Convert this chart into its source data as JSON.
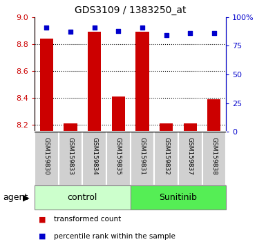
{
  "title": "GDS3109 / 1383250_at",
  "samples": [
    "GSM159830",
    "GSM159833",
    "GSM159834",
    "GSM159835",
    "GSM159831",
    "GSM159832",
    "GSM159837",
    "GSM159838"
  ],
  "groups": [
    "control",
    "control",
    "control",
    "control",
    "Sunitinib",
    "Sunitinib",
    "Sunitinib",
    "Sunitinib"
  ],
  "transformed_count": [
    8.84,
    8.21,
    8.89,
    8.41,
    8.89,
    8.21,
    8.21,
    8.39
  ],
  "percentile_rank": [
    91,
    87,
    91,
    88,
    91,
    84,
    86,
    86
  ],
  "ylim_left": [
    8.15,
    9.0
  ],
  "ylim_right": [
    0,
    100
  ],
  "yticks_left": [
    8.2,
    8.4,
    8.6,
    8.8,
    9.0
  ],
  "yticks_right": [
    0,
    25,
    50,
    75,
    100
  ],
  "bar_color": "#cc0000",
  "dot_color": "#0000cc",
  "bar_baseline": 8.15,
  "control_color": "#ccffcc",
  "sunitinib_color": "#55ee55",
  "agent_label": "agent",
  "legend_bar_label": "transformed count",
  "legend_dot_label": "percentile rank within the sample",
  "left_axis_color": "#cc0000",
  "right_axis_color": "#0000cc",
  "grid_color": "black"
}
